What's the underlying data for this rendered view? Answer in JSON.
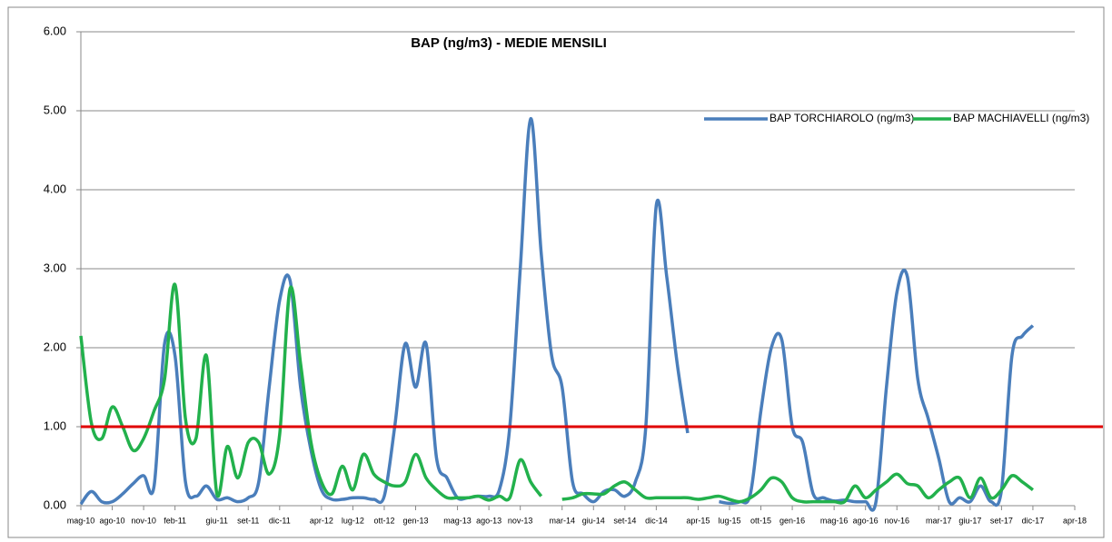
{
  "chart_data": {
    "type": "line",
    "title": "BAP (ng/m3) - MEDIE MENSILI",
    "x": [
      "2010-05",
      "2010-06",
      "2010-07",
      "2010-08",
      "2010-09",
      "2010-10",
      "2010-11",
      "2010-12",
      "2011-01",
      "2011-02",
      "2011-03",
      "2011-04",
      "2011-05",
      "2011-06",
      "2011-07",
      "2011-08",
      "2011-09",
      "2011-10",
      "2011-11",
      "2011-12",
      "2012-01",
      "2012-02",
      "2012-03",
      "2012-04",
      "2012-05",
      "2012-06",
      "2012-07",
      "2012-08",
      "2012-09",
      "2012-10",
      "2012-11",
      "2012-12",
      "2013-01",
      "2013-02",
      "2013-03",
      "2013-04",
      "2013-05",
      "2013-06",
      "2013-07",
      "2013-08",
      "2013-09",
      "2013-10",
      "2013-11",
      "2013-12",
      "2014-01",
      "2014-02",
      "2014-03",
      "2014-04",
      "2014-05",
      "2014-06",
      "2014-07",
      "2014-08",
      "2014-09",
      "2014-10",
      "2014-11",
      "2014-12",
      "2015-01",
      "2015-02",
      "2015-03",
      "2015-04",
      "2015-05",
      "2015-06",
      "2015-07",
      "2015-08",
      "2015-09",
      "2015-10",
      "2015-11",
      "2015-12",
      "2016-01",
      "2016-02",
      "2016-03",
      "2016-04",
      "2016-05",
      "2016-06",
      "2016-07",
      "2016-08",
      "2016-09",
      "2016-10",
      "2016-11",
      "2016-12",
      "2017-01",
      "2017-02",
      "2017-03",
      "2017-04",
      "2017-05",
      "2017-06",
      "2017-07",
      "2017-08",
      "2017-09",
      "2017-10",
      "2017-11",
      "2017-12"
    ],
    "series": [
      {
        "name": "BAP TORCHIAROLO (ng/m3)",
        "color": "#4a7ebb",
        "values": [
          0.02,
          0.18,
          0.05,
          0.05,
          0.15,
          0.28,
          0.38,
          0.25,
          2.05,
          1.9,
          0.3,
          0.12,
          0.25,
          0.08,
          0.1,
          0.05,
          0.1,
          0.3,
          1.5,
          2.6,
          2.85,
          1.5,
          0.7,
          0.2,
          0.08,
          0.08,
          0.1,
          0.1,
          0.08,
          0.12,
          1.0,
          2.05,
          1.5,
          2.05,
          0.6,
          0.35,
          0.1,
          0.1,
          0.12,
          0.12,
          0.2,
          1.0,
          3.0,
          4.9,
          3.2,
          1.9,
          1.5,
          0.3,
          0.15,
          0.05,
          0.18,
          0.2,
          0.12,
          0.3,
          1.0,
          3.8,
          2.9,
          1.8,
          0.92,
          null,
          null,
          0.05,
          0.03,
          0.05,
          0.15,
          1.2,
          2.0,
          2.1,
          1.0,
          0.8,
          0.15,
          0.1,
          0.06,
          0.07,
          0.05,
          0.05,
          0.05,
          1.5,
          2.7,
          2.9,
          1.6,
          1.1,
          0.6,
          0.05,
          0.1,
          0.05,
          0.25,
          0.05,
          0.2,
          1.9,
          2.15,
          2.28
        ]
      },
      {
        "name": "BAP MACHIAVELLI (ng/m3)",
        "color": "#22b14c",
        "values": [
          2.15,
          1.05,
          0.85,
          1.25,
          1.0,
          0.7,
          0.85,
          1.2,
          1.6,
          2.8,
          1.1,
          0.85,
          1.9,
          0.15,
          0.75,
          0.35,
          0.8,
          0.8,
          0.4,
          0.9,
          2.75,
          1.8,
          0.8,
          0.3,
          0.15,
          0.5,
          0.2,
          0.65,
          0.4,
          0.3,
          0.25,
          0.3,
          0.65,
          0.35,
          0.2,
          0.1,
          0.1,
          0.1,
          0.12,
          0.07,
          0.12,
          0.1,
          0.58,
          0.3,
          0.12,
          null,
          0.08,
          0.1,
          0.15,
          0.15,
          0.15,
          0.25,
          0.3,
          0.2,
          0.1,
          0.1,
          0.1,
          0.1,
          0.1,
          0.08,
          0.1,
          0.12,
          0.08,
          0.05,
          0.1,
          0.2,
          0.35,
          0.3,
          0.1,
          0.05,
          0.05,
          0.05,
          0.05,
          0.05,
          0.25,
          0.1,
          0.2,
          0.3,
          0.4,
          0.28,
          0.25,
          0.1,
          0.2,
          0.3,
          0.35,
          0.1,
          0.35,
          0.1,
          0.2,
          0.38,
          0.3,
          0.2
        ]
      }
    ],
    "threshold": {
      "value": 1,
      "color": "#e00000"
    },
    "xlim": [
      "2010-05",
      "2018-04"
    ],
    "xticks": [
      {
        "value": "2010-05",
        "label": "mag-10"
      },
      {
        "value": "2010-08",
        "label": "ago-10"
      },
      {
        "value": "2010-11",
        "label": "nov-10"
      },
      {
        "value": "2011-02",
        "label": "feb-11"
      },
      {
        "value": "2011-06",
        "label": "giu-11"
      },
      {
        "value": "2011-09",
        "label": "set-11"
      },
      {
        "value": "2011-12",
        "label": "dic-11"
      },
      {
        "value": "2012-04",
        "label": "apr-12"
      },
      {
        "value": "2012-07",
        "label": "lug-12"
      },
      {
        "value": "2012-10",
        "label": "ott-12"
      },
      {
        "value": "2013-01",
        "label": "gen-13"
      },
      {
        "value": "2013-05",
        "label": "mag-13"
      },
      {
        "value": "2013-08",
        "label": "ago-13"
      },
      {
        "value": "2013-11",
        "label": "nov-13"
      },
      {
        "value": "2014-03",
        "label": "mar-14"
      },
      {
        "value": "2014-06",
        "label": "giu-14"
      },
      {
        "value": "2014-09",
        "label": "set-14"
      },
      {
        "value": "2014-12",
        "label": "dic-14"
      },
      {
        "value": "2015-04",
        "label": "apr-15"
      },
      {
        "value": "2015-07",
        "label": "lug-15"
      },
      {
        "value": "2015-10",
        "label": "ott-15"
      },
      {
        "value": "2016-01",
        "label": "gen-16"
      },
      {
        "value": "2016-05",
        "label": "mag-16"
      },
      {
        "value": "2016-08",
        "label": "ago-16"
      },
      {
        "value": "2016-11",
        "label": "nov-16"
      },
      {
        "value": "2017-03",
        "label": "mar-17"
      },
      {
        "value": "2017-06",
        "label": "giu-17"
      },
      {
        "value": "2017-09",
        "label": "set-17"
      },
      {
        "value": "2017-12",
        "label": "dic-17"
      },
      {
        "value": "2018-04",
        "label": "apr-18"
      }
    ],
    "ylim": [
      0,
      6
    ],
    "yticks": [
      {
        "value": 0,
        "label": "0.00"
      },
      {
        "value": 1,
        "label": "1.00"
      },
      {
        "value": 2,
        "label": "2.00"
      },
      {
        "value": 3,
        "label": "3.00"
      },
      {
        "value": 4,
        "label": "4.00"
      },
      {
        "value": 5,
        "label": "5.00"
      },
      {
        "value": 6,
        "label": "6.00"
      }
    ],
    "grid": true,
    "legend": "top-right"
  }
}
